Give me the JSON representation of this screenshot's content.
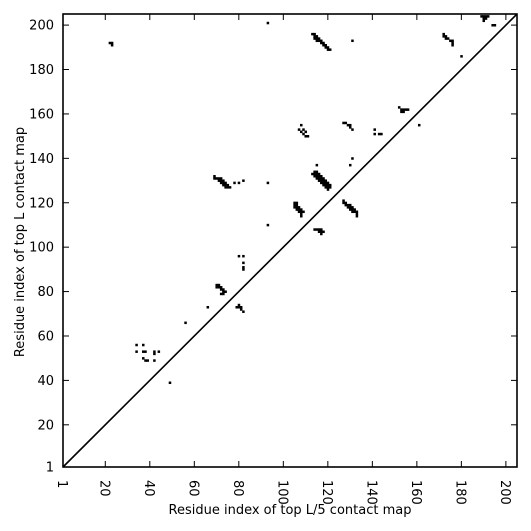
{
  "chart_data": {
    "type": "heatmap",
    "title": "",
    "xlabel": "Residue index of top L/5 contact map",
    "ylabel": "Residue index of top L contact map",
    "xlim": [
      1,
      205
    ],
    "ylim": [
      1,
      205
    ],
    "x_ticks": [
      1,
      20,
      40,
      60,
      80,
      100,
      120,
      140,
      160,
      180,
      200
    ],
    "y_ticks": [
      1,
      20,
      40,
      60,
      80,
      100,
      120,
      140,
      160,
      180,
      200
    ],
    "x_tick_rotation": -90,
    "grid": false,
    "diagonal_line": true,
    "cell_color": "#000000",
    "line_color": "#000000",
    "upper_triangle_contacts": [],
    "lower_triangle_contacts": [
      [
        22,
        192
      ],
      [
        23,
        192
      ],
      [
        23,
        191
      ],
      [
        93,
        201
      ],
      [
        189,
        204
      ],
      [
        190,
        204
      ],
      [
        190,
        203
      ],
      [
        191,
        203
      ],
      [
        191,
        204
      ],
      [
        192,
        204
      ],
      [
        190,
        202
      ],
      [
        194,
        200
      ],
      [
        195,
        200
      ],
      [
        113,
        196
      ],
      [
        114,
        196
      ],
      [
        115,
        195
      ],
      [
        114,
        195
      ],
      [
        115,
        194
      ],
      [
        116,
        194
      ],
      [
        116,
        193
      ],
      [
        117,
        193
      ],
      [
        117,
        192
      ],
      [
        118,
        192
      ],
      [
        118,
        191
      ],
      [
        119,
        191
      ],
      [
        119,
        190
      ],
      [
        120,
        190
      ],
      [
        120,
        189
      ],
      [
        121,
        189
      ],
      [
        114,
        194
      ],
      [
        115,
        193
      ],
      [
        131,
        193
      ],
      [
        172,
        196
      ],
      [
        172,
        195
      ],
      [
        173,
        195
      ],
      [
        173,
        194
      ],
      [
        174,
        194
      ],
      [
        175,
        193
      ],
      [
        176,
        193
      ],
      [
        176,
        192
      ],
      [
        176,
        191
      ],
      [
        180,
        186
      ],
      [
        152,
        163
      ],
      [
        153,
        162
      ],
      [
        154,
        162
      ],
      [
        155,
        162
      ],
      [
        156,
        162
      ],
      [
        154,
        161
      ],
      [
        153,
        161
      ],
      [
        127,
        156
      ],
      [
        128,
        156
      ],
      [
        129,
        155
      ],
      [
        130,
        155
      ],
      [
        130,
        154
      ],
      [
        131,
        153
      ],
      [
        141,
        153
      ],
      [
        141,
        151
      ],
      [
        143,
        151
      ],
      [
        144,
        151
      ],
      [
        108,
        155
      ],
      [
        107,
        153
      ],
      [
        108,
        152
      ],
      [
        109,
        153
      ],
      [
        109,
        151
      ],
      [
        110,
        152
      ],
      [
        110,
        150
      ],
      [
        111,
        150
      ],
      [
        161,
        155
      ],
      [
        131,
        140
      ],
      [
        130,
        137
      ],
      [
        115,
        137
      ],
      [
        114,
        134
      ],
      [
        115,
        134
      ],
      [
        113,
        133
      ],
      [
        114,
        133
      ],
      [
        115,
        133
      ],
      [
        116,
        133
      ],
      [
        114,
        132
      ],
      [
        115,
        132
      ],
      [
        116,
        132
      ],
      [
        117,
        132
      ],
      [
        115,
        131
      ],
      [
        116,
        131
      ],
      [
        117,
        131
      ],
      [
        118,
        131
      ],
      [
        116,
        130
      ],
      [
        117,
        130
      ],
      [
        118,
        130
      ],
      [
        119,
        130
      ],
      [
        117,
        129
      ],
      [
        118,
        129
      ],
      [
        119,
        129
      ],
      [
        120,
        129
      ],
      [
        118,
        128
      ],
      [
        119,
        128
      ],
      [
        120,
        128
      ],
      [
        121,
        128
      ],
      [
        119,
        127
      ],
      [
        120,
        127
      ],
      [
        121,
        127
      ],
      [
        120,
        126
      ],
      [
        69,
        132
      ],
      [
        69,
        131
      ],
      [
        70,
        131
      ],
      [
        71,
        131
      ],
      [
        72,
        131
      ],
      [
        71,
        130
      ],
      [
        72,
        130
      ],
      [
        73,
        130
      ],
      [
        72,
        129
      ],
      [
        73,
        129
      ],
      [
        74,
        129
      ],
      [
        73,
        128
      ],
      [
        74,
        128
      ],
      [
        75,
        128
      ],
      [
        74,
        127
      ],
      [
        75,
        127
      ],
      [
        76,
        127
      ],
      [
        78,
        129
      ],
      [
        80,
        129
      ],
      [
        82,
        130
      ],
      [
        93,
        129
      ],
      [
        127,
        121
      ],
      [
        127,
        120
      ],
      [
        128,
        120
      ],
      [
        128,
        119
      ],
      [
        129,
        119
      ],
      [
        130,
        119
      ],
      [
        129,
        118
      ],
      [
        130,
        118
      ],
      [
        131,
        118
      ],
      [
        130,
        117
      ],
      [
        131,
        117
      ],
      [
        132,
        117
      ],
      [
        131,
        116
      ],
      [
        132,
        116
      ],
      [
        133,
        116
      ],
      [
        133,
        115
      ],
      [
        133,
        114
      ],
      [
        105,
        120
      ],
      [
        106,
        120
      ],
      [
        105,
        119
      ],
      [
        106,
        119
      ],
      [
        105,
        118
      ],
      [
        106,
        118
      ],
      [
        107,
        118
      ],
      [
        106,
        117
      ],
      [
        107,
        117
      ],
      [
        108,
        117
      ],
      [
        107,
        116
      ],
      [
        108,
        116
      ],
      [
        109,
        116
      ],
      [
        108,
        115
      ],
      [
        108,
        114
      ],
      [
        93,
        110
      ],
      [
        114,
        108
      ],
      [
        115,
        108
      ],
      [
        116,
        108
      ],
      [
        117,
        108
      ],
      [
        116,
        107
      ],
      [
        117,
        107
      ],
      [
        118,
        107
      ],
      [
        117,
        106
      ],
      [
        80,
        96
      ],
      [
        82,
        96
      ],
      [
        82,
        93
      ],
      [
        82,
        91
      ],
      [
        82,
        90
      ],
      [
        70,
        83
      ],
      [
        71,
        83
      ],
      [
        71,
        82
      ],
      [
        72,
        82
      ],
      [
        70,
        82
      ],
      [
        72,
        81
      ],
      [
        73,
        81
      ],
      [
        73,
        80
      ],
      [
        74,
        80
      ],
      [
        72,
        79
      ],
      [
        73,
        79
      ],
      [
        80,
        74
      ],
      [
        80,
        73
      ],
      [
        81,
        73
      ],
      [
        79,
        73
      ],
      [
        81,
        72
      ],
      [
        82,
        71
      ],
      [
        66,
        73
      ],
      [
        56,
        66
      ],
      [
        34,
        56
      ],
      [
        37,
        56
      ],
      [
        34,
        53
      ],
      [
        37,
        53
      ],
      [
        38,
        53
      ],
      [
        42,
        53
      ],
      [
        44,
        53
      ],
      [
        42,
        52
      ],
      [
        37,
        50
      ],
      [
        38,
        49
      ],
      [
        39,
        49
      ],
      [
        42,
        49
      ],
      [
        49,
        39
      ]
    ]
  }
}
